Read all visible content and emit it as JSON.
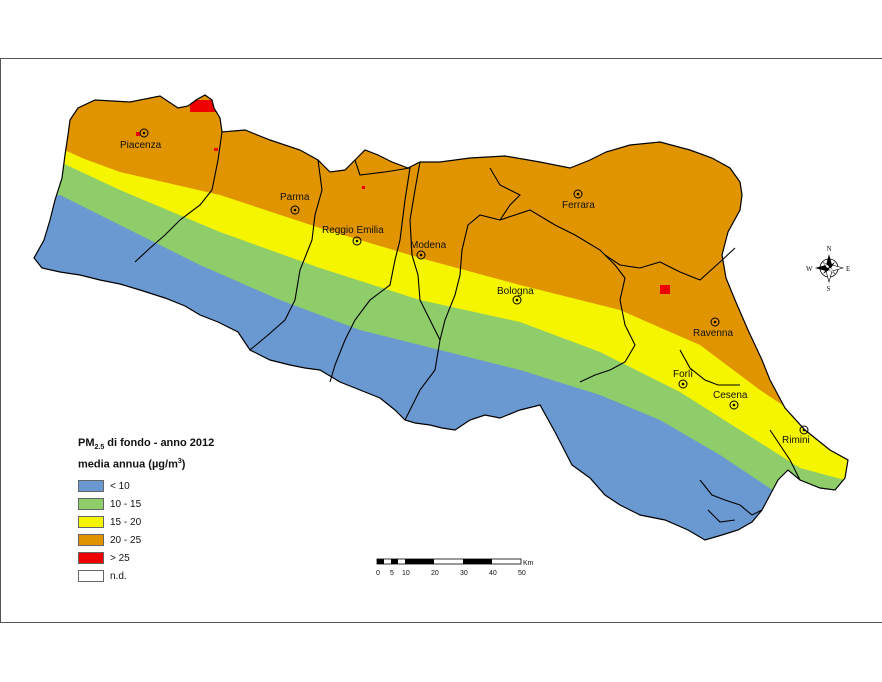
{
  "legend": {
    "title_prefix": "PM",
    "title_sub": "2.5",
    "title_main": " di fondo - anno 2012",
    "title_line2_pre": "media annua (µg/m",
    "title_line2_sup": "3",
    "title_line2_post": ")",
    "classes": [
      {
        "label": "< 10",
        "color": "#6a98d0"
      },
      {
        "label": "10 - 15",
        "color": "#8fcd6a"
      },
      {
        "label": "15 - 20",
        "color": "#f5f500"
      },
      {
        "label": "20 - 25",
        "color": "#e09400"
      },
      {
        "label": "> 25",
        "color": "#ee0000"
      },
      {
        "label": "n.d.",
        "color": "#ffffff"
      }
    ]
  },
  "cities": {
    "piacenza": "Piacenza",
    "parma": "Parma",
    "reggio": "Reggio Emilia",
    "modena": "Modena",
    "ferrara": "Ferrara",
    "bologna": "Bologna",
    "ravenna": "Ravenna",
    "forli": "Forlì",
    "cesena": "Cesena",
    "rimini": "Rimini"
  },
  "scalebar": {
    "unit": "Km",
    "ticks": [
      "0",
      "5",
      "10",
      "20",
      "30",
      "40",
      "50"
    ]
  },
  "compass": {
    "n": "N",
    "s": "S",
    "e": "E",
    "w": "W"
  }
}
